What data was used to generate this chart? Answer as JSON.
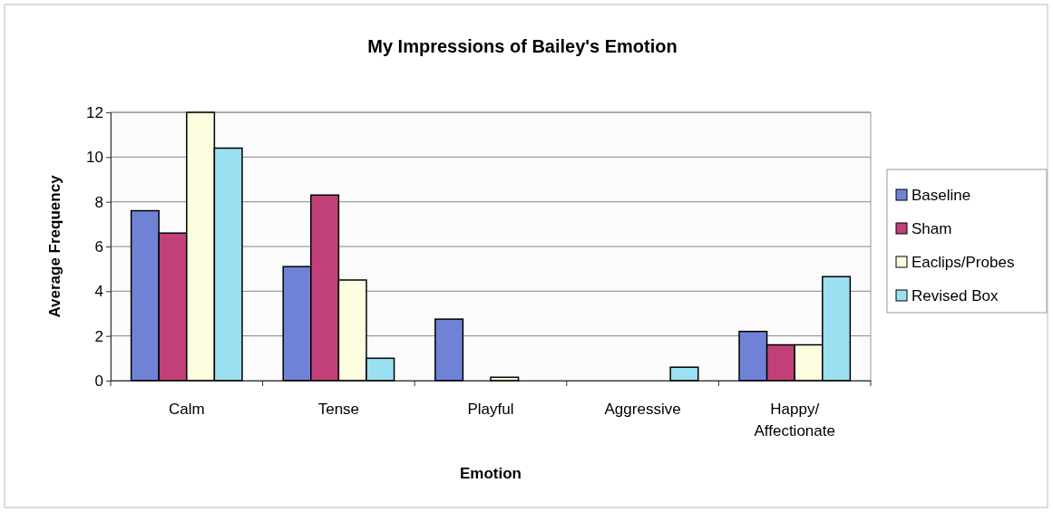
{
  "chart_data": {
    "type": "bar",
    "title": "My Impressions of Bailey's Emotion",
    "xlabel": "Emotion",
    "ylabel": "Average Frequency",
    "categories": [
      "Calm",
      "Tense",
      "Playful",
      "Aggressive",
      "Happy/Affectionate"
    ],
    "series": [
      {
        "name": "Baseline",
        "color": "#6f82d6",
        "values": [
          7.6,
          5.1,
          2.75,
          0,
          2.2
        ]
      },
      {
        "name": "Sham",
        "color": "#c1407a",
        "values": [
          6.6,
          8.3,
          0,
          0,
          1.6
        ]
      },
      {
        "name": "Eaclips/Probes",
        "color": "#fdfde0",
        "values": [
          12,
          4.5,
          0.15,
          0,
          1.6
        ]
      },
      {
        "name": "Revised Box",
        "color": "#9be0f0",
        "values": [
          10.4,
          1.0,
          0,
          0.6,
          4.65
        ]
      }
    ],
    "ylim": [
      0,
      12
    ],
    "yticks": [
      0,
      2,
      4,
      6,
      8,
      10,
      12
    ],
    "grid": "y",
    "legend": "right"
  }
}
